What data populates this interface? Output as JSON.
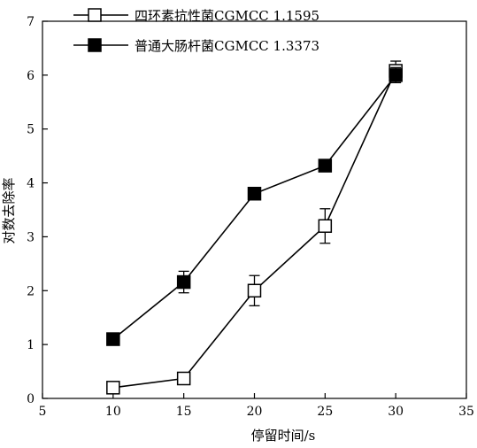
{
  "chart_data": {
    "type": "line",
    "title": "",
    "xlabel": "停留时间/s",
    "ylabel": "对数去除率",
    "xlim": [
      5,
      35
    ],
    "ylim": [
      0,
      7
    ],
    "xticks": [
      "5",
      "10",
      "15",
      "20",
      "25",
      "30",
      "35"
    ],
    "yticks": [
      "0",
      "1",
      "2",
      "3",
      "4",
      "5",
      "6",
      "7"
    ],
    "grid": false,
    "legend_position": "top-left",
    "series": [
      {
        "name": "四环素抗性菌CGMCC 1.1595",
        "marker": "open-square",
        "color": "#000000",
        "x": [
          10,
          15,
          20,
          25,
          30
        ],
        "y": [
          0.2,
          0.37,
          2.0,
          3.2,
          6.08
        ],
        "err": [
          0.0,
          0.0,
          0.28,
          0.32,
          0.18
        ]
      },
      {
        "name": "普通大肠杆菌CGMCC 1.3373",
        "marker": "filled-square",
        "color": "#000000",
        "x": [
          10,
          15,
          20,
          25,
          30
        ],
        "y": [
          1.1,
          2.16,
          3.8,
          4.32,
          6.0
        ],
        "err": [
          0.07,
          0.2,
          0.06,
          0.1,
          0.14
        ]
      }
    ]
  }
}
